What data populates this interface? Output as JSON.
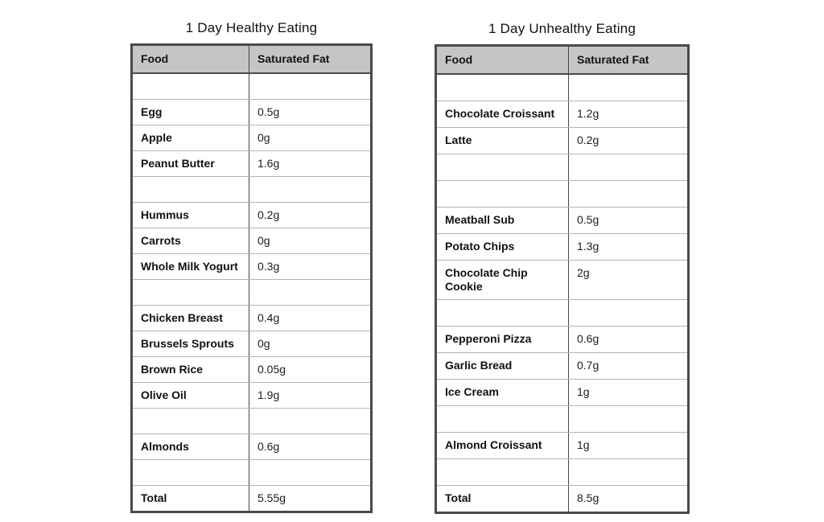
{
  "colors": {
    "header_bg": "#c5c5c5",
    "outer_border": "#4a4a4a",
    "row_line": "#b4b4b4",
    "column_divider": "#444444",
    "text": "#111111",
    "page_bg": "#ffffff"
  },
  "tables": {
    "healthy": {
      "title": "1 Day Healthy Eating",
      "columns": [
        "Food",
        "Saturated Fat"
      ],
      "rows": [
        {
          "food": "",
          "fat": ""
        },
        {
          "food": "Egg",
          "fat": "0.5g"
        },
        {
          "food": "Apple",
          "fat": "0g"
        },
        {
          "food": "Peanut Butter",
          "fat": "1.6g"
        },
        {
          "food": "",
          "fat": ""
        },
        {
          "food": "Hummus",
          "fat": "0.2g"
        },
        {
          "food": "Carrots",
          "fat": "0g"
        },
        {
          "food": "Whole Milk Yogurt",
          "fat": "0.3g"
        },
        {
          "food": "",
          "fat": ""
        },
        {
          "food": "Chicken Breast",
          "fat": "0.4g"
        },
        {
          "food": "Brussels Sprouts",
          "fat": "0g"
        },
        {
          "food": "Brown Rice",
          "fat": "0.05g"
        },
        {
          "food": "Olive Oil",
          "fat": "1.9g"
        },
        {
          "food": "",
          "fat": ""
        },
        {
          "food": "Almonds",
          "fat": "0.6g"
        },
        {
          "food": "",
          "fat": ""
        },
        {
          "food": "Total",
          "fat": "5.55g"
        }
      ]
    },
    "unhealthy": {
      "title": "1 Day Unhealthy Eating",
      "columns": [
        "Food",
        "Saturated Fat"
      ],
      "rows": [
        {
          "food": "",
          "fat": ""
        },
        {
          "food": "Chocolate Croissant",
          "fat": "1.2g"
        },
        {
          "food": "Latte",
          "fat": "0.2g"
        },
        {
          "food": "",
          "fat": ""
        },
        {
          "food": "",
          "fat": ""
        },
        {
          "food": "Meatball Sub",
          "fat": "0.5g"
        },
        {
          "food": "Potato Chips",
          "fat": "1.3g"
        },
        {
          "food": "Chocolate Chip Cookie",
          "fat": "2g"
        },
        {
          "food": "",
          "fat": ""
        },
        {
          "food": "Pepperoni Pizza",
          "fat": "0.6g"
        },
        {
          "food": "Garlic Bread",
          "fat": "0.7g"
        },
        {
          "food": "Ice Cream",
          "fat": "1g"
        },
        {
          "food": "",
          "fat": ""
        },
        {
          "food": "Almond Croissant",
          "fat": "1g"
        },
        {
          "food": "",
          "fat": ""
        },
        {
          "food": "Total",
          "fat": "8.5g"
        }
      ]
    }
  },
  "chart_data": [
    {
      "type": "table",
      "title": "1 Day Healthy Eating",
      "columns": [
        "Food",
        "Saturated Fat"
      ],
      "rows": [
        [
          "Egg",
          "0.5g"
        ],
        [
          "Apple",
          "0g"
        ],
        [
          "Peanut Butter",
          "1.6g"
        ],
        [
          "Hummus",
          "0.2g"
        ],
        [
          "Carrots",
          "0g"
        ],
        [
          "Whole Milk Yogurt",
          "0.3g"
        ],
        [
          "Chicken Breast",
          "0.4g"
        ],
        [
          "Brussels Sprouts",
          "0g"
        ],
        [
          "Brown Rice",
          "0.05g"
        ],
        [
          "Olive Oil",
          "1.9g"
        ],
        [
          "Almonds",
          "0.6g"
        ],
        [
          "Total",
          "5.55g"
        ]
      ]
    },
    {
      "type": "table",
      "title": "1 Day Unhealthy Eating",
      "columns": [
        "Food",
        "Saturated Fat"
      ],
      "rows": [
        [
          "Chocolate Croissant",
          "1.2g"
        ],
        [
          "Latte",
          "0.2g"
        ],
        [
          "Meatball Sub",
          "0.5g"
        ],
        [
          "Potato Chips",
          "1.3g"
        ],
        [
          "Chocolate Chip Cookie",
          "2g"
        ],
        [
          "Pepperoni Pizza",
          "0.6g"
        ],
        [
          "Garlic Bread",
          "0.7g"
        ],
        [
          "Ice Cream",
          "1g"
        ],
        [
          "Almond Croissant",
          "1g"
        ],
        [
          "Total",
          "8.5g"
        ]
      ]
    }
  ]
}
